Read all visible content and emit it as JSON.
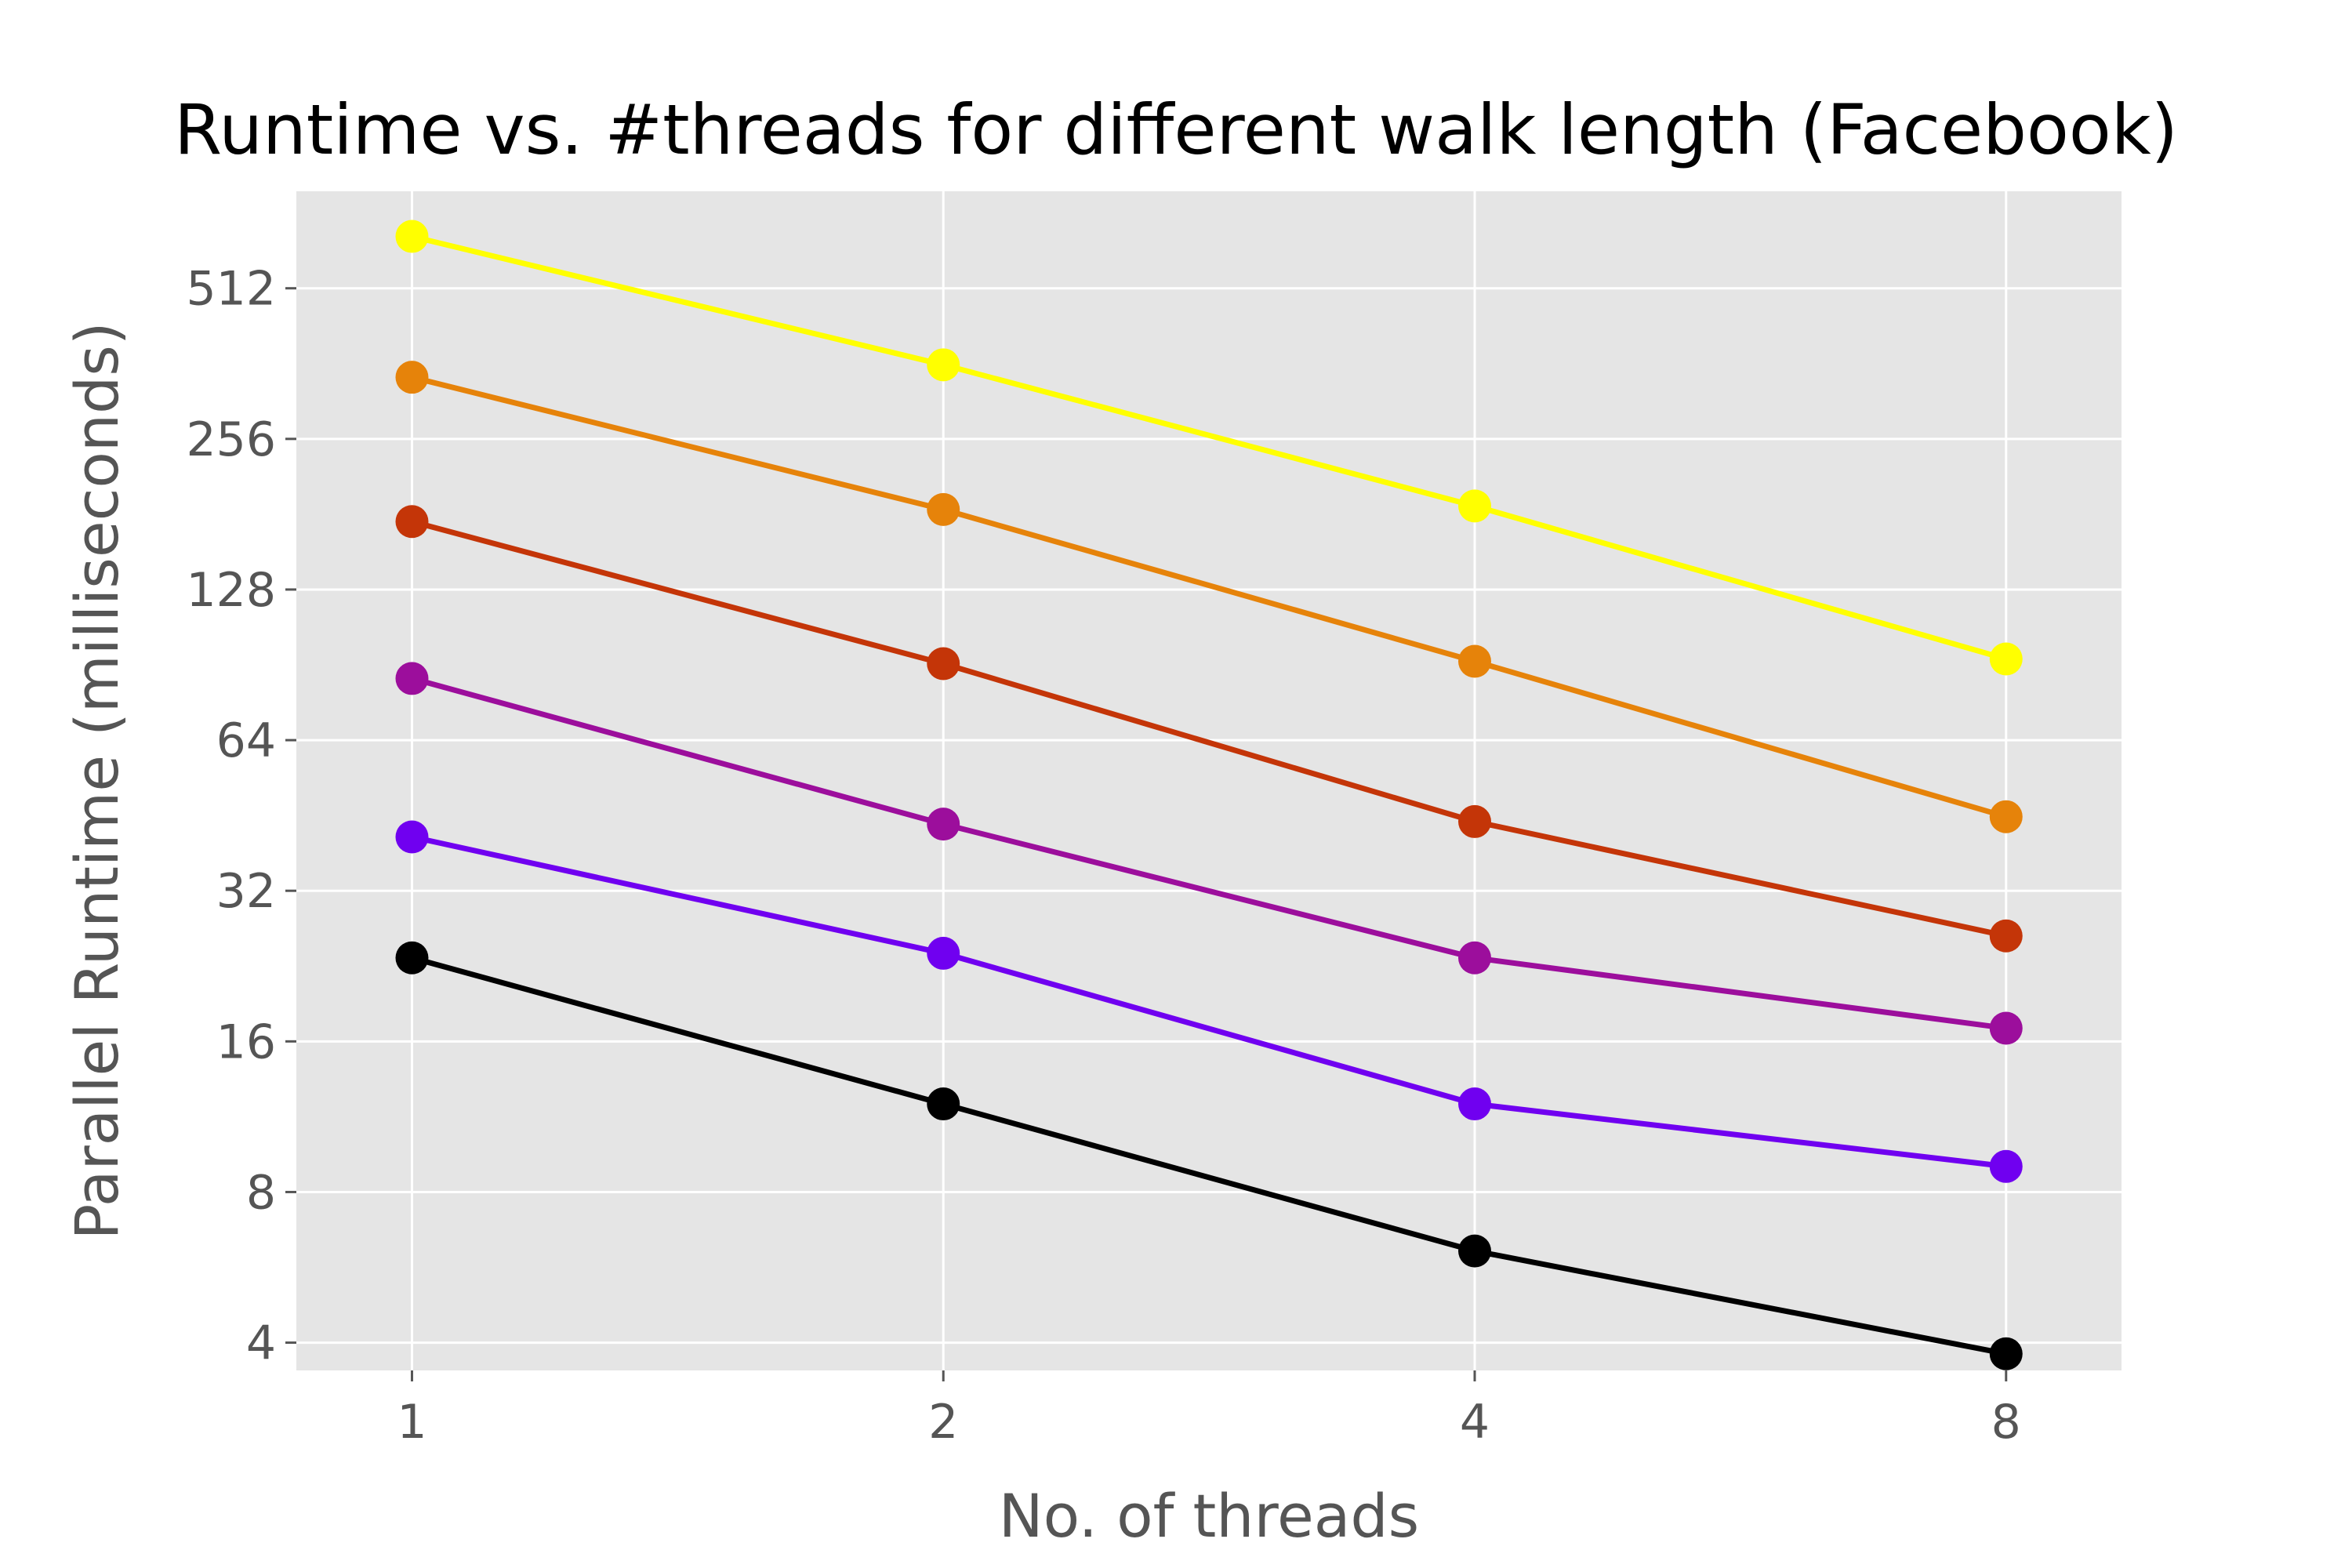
{
  "chart_data": {
    "type": "line",
    "title": "Runtime vs. #threads for different walk length (Facebook)",
    "xlabel": "No. of threads",
    "ylabel": "Parallel Runtime (milliseconds)",
    "x": [
      1,
      2,
      4,
      8
    ],
    "x_tick_labels": [
      "1",
      "2",
      "4",
      "8"
    ],
    "y_ticks": [
      4,
      8,
      16,
      32,
      64,
      128,
      256,
      512
    ],
    "y_tick_labels": [
      "4",
      "8",
      "16",
      "32",
      "64",
      "128",
      "256",
      "512"
    ],
    "xscale": "log2",
    "yscale": "log2",
    "xlim": [
      0.86,
      9.3
    ],
    "ylim": [
      3.52,
      800
    ],
    "grid": true,
    "legend": "none",
    "series": [
      {
        "color": "#000000",
        "values": [
          23.5,
          12.0,
          6.1,
          3.8
        ]
      },
      {
        "color": "#7000f0",
        "values": [
          41.0,
          24.0,
          12.0,
          9.0
        ]
      },
      {
        "color": "#9c0e9c",
        "values": [
          85.0,
          43.5,
          23.5,
          17.0
        ]
      },
      {
        "color": "#c43508",
        "values": [
          175.0,
          91.0,
          44.0,
          26.0
        ]
      },
      {
        "color": "#e6830a",
        "values": [
          340.0,
          185.0,
          92.0,
          45.0
        ]
      },
      {
        "color": "#ffff00",
        "values": [
          650.0,
          360.0,
          188.0,
          93.0
        ]
      }
    ]
  }
}
